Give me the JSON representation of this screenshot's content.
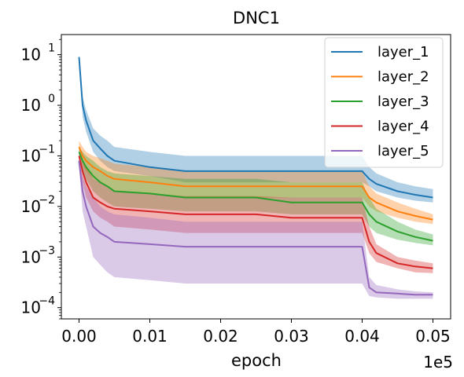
{
  "chart_data": {
    "type": "line",
    "title": "DNC1",
    "xlabel": "epoch",
    "ylabel": "",
    "x_offset_text": "1e5",
    "x_tick_labels": [
      "0.00",
      "0.01",
      "0.02",
      "0.03",
      "0.04",
      "0.05"
    ],
    "x_ticks": [
      0,
      0.01,
      0.02,
      0.03,
      0.04,
      0.05
    ],
    "xlim": [
      -0.0025,
      0.0525
    ],
    "y_scale": "log",
    "y_ticks": [
      {
        "base": "10",
        "exp": "1",
        "value": 10
      },
      {
        "base": "10",
        "exp": "0",
        "value": 1
      },
      {
        "base": "10",
        "exp": "−1",
        "value": 0.1
      },
      {
        "base": "10",
        "exp": "−2",
        "value": 0.01
      },
      {
        "base": "10",
        "exp": "−3",
        "value": 0.001
      },
      {
        "base": "10",
        "exp": "−4",
        "value": 0.0001
      }
    ],
    "ylim": [
      6e-05,
      25
    ],
    "legend_position": "top-right",
    "grid": false,
    "x": [
      0.0,
      0.0005,
      0.001,
      0.002,
      0.003,
      0.004,
      0.005,
      0.01,
      0.015,
      0.02,
      0.025,
      0.03,
      0.035,
      0.039,
      0.04,
      0.041,
      0.042,
      0.045,
      0.0475,
      0.05
    ],
    "series": [
      {
        "name": "layer_1",
        "color": "#1f77b4",
        "values": [
          9.0,
          1.0,
          0.5,
          0.2,
          0.14,
          0.1,
          0.08,
          0.06,
          0.05,
          0.05,
          0.05,
          0.05,
          0.05,
          0.05,
          0.05,
          0.035,
          0.028,
          0.02,
          0.017,
          0.015
        ],
        "band_low": [
          9.0,
          0.6,
          0.3,
          0.12,
          0.08,
          0.06,
          0.05,
          0.04,
          0.03,
          0.03,
          0.03,
          0.03,
          0.03,
          0.03,
          0.03,
          0.025,
          0.02,
          0.015,
          0.013,
          0.012
        ],
        "band_high": [
          9.0,
          1.5,
          0.8,
          0.35,
          0.25,
          0.2,
          0.15,
          0.12,
          0.1,
          0.1,
          0.1,
          0.1,
          0.1,
          0.1,
          0.1,
          0.06,
          0.045,
          0.03,
          0.025,
          0.022
        ]
      },
      {
        "name": "layer_2",
        "color": "#ff7f0e",
        "values": [
          0.15,
          0.1,
          0.08,
          0.06,
          0.05,
          0.04,
          0.035,
          0.03,
          0.025,
          0.025,
          0.025,
          0.025,
          0.025,
          0.025,
          0.025,
          0.015,
          0.012,
          0.008,
          0.0065,
          0.0055
        ],
        "band_low": [
          0.12,
          0.07,
          0.05,
          0.035,
          0.03,
          0.025,
          0.02,
          0.018,
          0.015,
          0.015,
          0.015,
          0.015,
          0.015,
          0.015,
          0.015,
          0.01,
          0.008,
          0.006,
          0.005,
          0.0045
        ],
        "band_high": [
          0.2,
          0.15,
          0.12,
          0.1,
          0.09,
          0.08,
          0.07,
          0.06,
          0.05,
          0.05,
          0.05,
          0.05,
          0.05,
          0.05,
          0.05,
          0.025,
          0.018,
          0.012,
          0.009,
          0.007
        ]
      },
      {
        "name": "layer_3",
        "color": "#2ca02c",
        "values": [
          0.12,
          0.08,
          0.06,
          0.04,
          0.03,
          0.025,
          0.02,
          0.018,
          0.015,
          0.015,
          0.015,
          0.012,
          0.012,
          0.012,
          0.012,
          0.007,
          0.005,
          0.0032,
          0.0025,
          0.0021
        ],
        "band_low": [
          0.1,
          0.05,
          0.035,
          0.02,
          0.015,
          0.012,
          0.01,
          0.009,
          0.008,
          0.008,
          0.008,
          0.007,
          0.007,
          0.007,
          0.007,
          0.004,
          0.003,
          0.0022,
          0.0019,
          0.0017
        ],
        "band_high": [
          0.15,
          0.12,
          0.1,
          0.08,
          0.06,
          0.05,
          0.045,
          0.04,
          0.035,
          0.035,
          0.035,
          0.03,
          0.03,
          0.03,
          0.03,
          0.015,
          0.009,
          0.005,
          0.0035,
          0.0028
        ]
      },
      {
        "name": "layer_4",
        "color": "#d62728",
        "values": [
          0.1,
          0.05,
          0.03,
          0.015,
          0.012,
          0.01,
          0.009,
          0.008,
          0.007,
          0.007,
          0.007,
          0.006,
          0.006,
          0.006,
          0.006,
          0.002,
          0.0012,
          0.00075,
          0.00065,
          0.0006
        ],
        "band_low": [
          0.08,
          0.03,
          0.015,
          0.008,
          0.006,
          0.005,
          0.004,
          0.0035,
          0.003,
          0.003,
          0.003,
          0.003,
          0.003,
          0.003,
          0.003,
          0.0012,
          0.0008,
          0.0006,
          0.0005,
          0.00048
        ],
        "band_high": [
          0.13,
          0.08,
          0.06,
          0.035,
          0.03,
          0.025,
          0.02,
          0.018,
          0.016,
          0.016,
          0.016,
          0.015,
          0.015,
          0.015,
          0.015,
          0.004,
          0.0018,
          0.001,
          0.00085,
          0.00075
        ]
      },
      {
        "name": "layer_5",
        "color": "#9467bd",
        "values": [
          0.08,
          0.02,
          0.01,
          0.004,
          0.003,
          0.0025,
          0.002,
          0.0018,
          0.0016,
          0.0016,
          0.0016,
          0.0016,
          0.0016,
          0.0016,
          0.0016,
          0.00025,
          0.0002,
          0.00019,
          0.00018,
          0.00018
        ],
        "band_low": [
          0.06,
          0.008,
          0.004,
          0.001,
          0.0007,
          0.0005,
          0.0004,
          0.00035,
          0.0003,
          0.0003,
          0.0003,
          0.0003,
          0.0003,
          0.0003,
          0.0003,
          0.00017,
          0.00016,
          0.00015,
          0.00015,
          0.00015
        ],
        "band_high": [
          0.1,
          0.04,
          0.025,
          0.015,
          0.01,
          0.008,
          0.007,
          0.006,
          0.005,
          0.005,
          0.005,
          0.005,
          0.005,
          0.005,
          0.005,
          0.0004,
          0.00028,
          0.00023,
          0.00021,
          0.0002
        ]
      }
    ]
  }
}
